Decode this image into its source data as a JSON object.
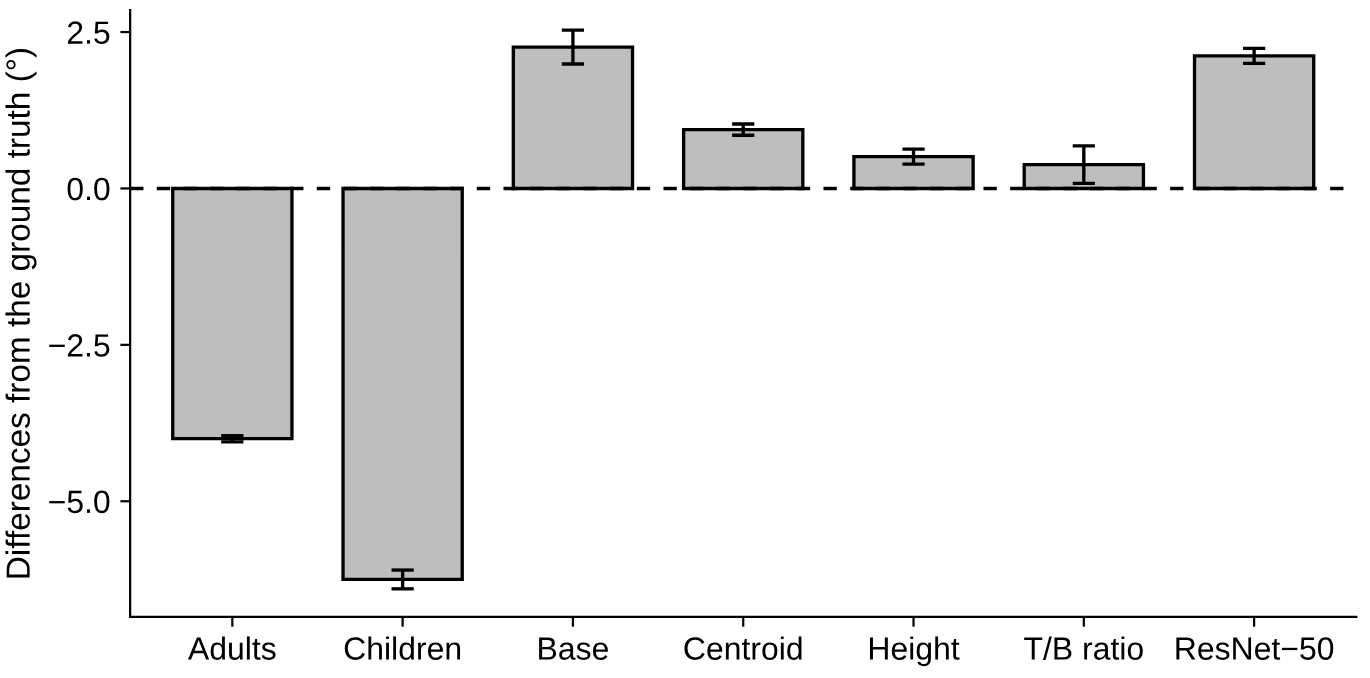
{
  "chart_data": {
    "type": "bar",
    "ylabel": "Differences from the ground truth (°)",
    "categories": [
      "Adults",
      "Children",
      "Base",
      "Centroid",
      "Height",
      "T/B ratio",
      "ResNet−50"
    ],
    "values": [
      -4.0,
      -6.25,
      2.26,
      0.94,
      0.51,
      0.38,
      2.12
    ],
    "errors": [
      0.05,
      0.15,
      0.27,
      0.09,
      0.12,
      0.3,
      0.12
    ],
    "color": "#bebebe",
    "ylim": [
      -6.85,
      2.85
    ],
    "yticks": [
      {
        "value": -5.0,
        "label": "−5.0"
      },
      {
        "value": -2.5,
        "label": "−2.5"
      },
      {
        "value": 0.0,
        "label": "0.0"
      },
      {
        "value": 2.5,
        "label": "2.5"
      }
    ],
    "ref_lines": [
      {
        "axis": "y",
        "value": 0,
        "line_style": "dashed",
        "color": "#000000"
      }
    ],
    "grid": false
  }
}
